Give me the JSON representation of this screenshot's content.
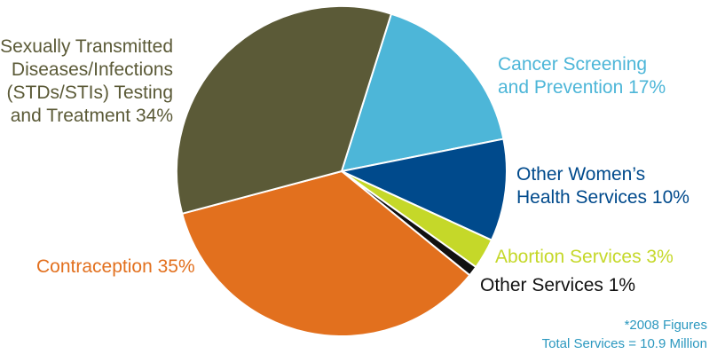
{
  "chart_data": {
    "type": "pie",
    "slices": [
      {
        "label_lines": [
          "Cancer Screening",
          "and Prevention 17%"
        ],
        "value": 17,
        "color": "#4db6d8",
        "label_color": "#4db6d8"
      },
      {
        "label_lines": [
          "Other Women’s",
          "Health Services 10%"
        ],
        "value": 10,
        "color": "#004a8c",
        "label_color": "#004a8c"
      },
      {
        "label_lines": [
          "Abortion Services 3%"
        ],
        "value": 3,
        "color": "#c5d829",
        "label_color": "#c5d829"
      },
      {
        "label_lines": [
          "Other Services 1%"
        ],
        "value": 1,
        "color": "#111111",
        "label_color": "#111111"
      },
      {
        "label_lines": [
          "Contraception 35%"
        ],
        "value": 35,
        "color": "#e2701e",
        "label_color": "#e2701e"
      },
      {
        "label_lines": [
          "Sexually Transmitted",
          "Diseases/Infections",
          "(STDs/STIs) Testing",
          "and Treatment 34%"
        ],
        "value": 34,
        "color": "#5b5a37",
        "label_color": "#5b5a37"
      }
    ],
    "footnote_lines": [
      "*2008 Figures",
      "Total Services = 10.9 Million"
    ],
    "footnote_color": "#2b98bf"
  }
}
